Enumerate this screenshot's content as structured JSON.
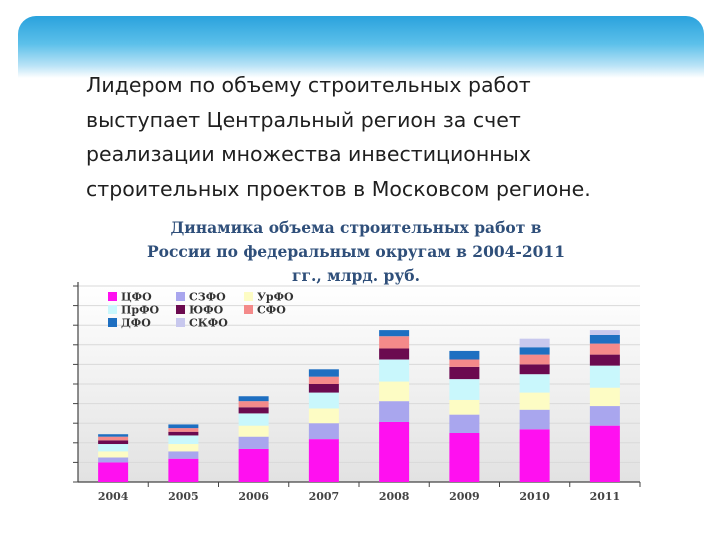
{
  "slide": {
    "lines": [
      "Лидером по объему строительных работ",
      "выступает Центральный регион за счет",
      "реализации множества инвестиционных",
      "строительных проектов в Московсом регионе."
    ]
  },
  "chart_data": {
    "type": "bar",
    "stacked": true,
    "title": "Динамика объема строительных работ в России по федеральным округам в 2004-2011 гг., млрд. руб.",
    "title_lines": [
      "Динамика объема строительных работ в",
      "России по федеральным округам в 2004-2011",
      "гг., млрд. руб."
    ],
    "categories": [
      "2004",
      "2005",
      "2006",
      "2007",
      "2008",
      "2009",
      "2010",
      "2011"
    ],
    "legend_position": "top-left",
    "grid": true,
    "series": [
      {
        "name": "ЦФО",
        "color": "#ff10f0",
        "values": [
          16,
          19,
          27,
          35,
          49,
          40,
          43,
          46
        ]
      },
      {
        "name": "СЗФО",
        "color": "#a9a6ee",
        "values": [
          4,
          6,
          10,
          13,
          17,
          15,
          16,
          16
        ]
      },
      {
        "name": "УрФО",
        "color": "#fdfcc4",
        "values": [
          5,
          6,
          9,
          12,
          16,
          12,
          14,
          15
        ]
      },
      {
        "name": "ПрФО",
        "color": "#c9f7fc",
        "values": [
          6,
          7,
          10,
          13,
          18,
          17,
          15,
          18
        ]
      },
      {
        "name": "ЮФО",
        "color": "#6b0a4f",
        "values": [
          3,
          3,
          5,
          7,
          9,
          10,
          8,
          9
        ]
      },
      {
        "name": "СФО",
        "color": "#f48a8a",
        "values": [
          3,
          3,
          5,
          6,
          10,
          6,
          8,
          9
        ]
      },
      {
        "name": "ДФО",
        "color": "#1e6fc1",
        "values": [
          2,
          3,
          4,
          6,
          5,
          7,
          6,
          7
        ]
      },
      {
        "name": "СКФО",
        "color": "#c8c8ee",
        "values": [
          0,
          0,
          0,
          0,
          0,
          0,
          7,
          4
        ]
      }
    ]
  }
}
